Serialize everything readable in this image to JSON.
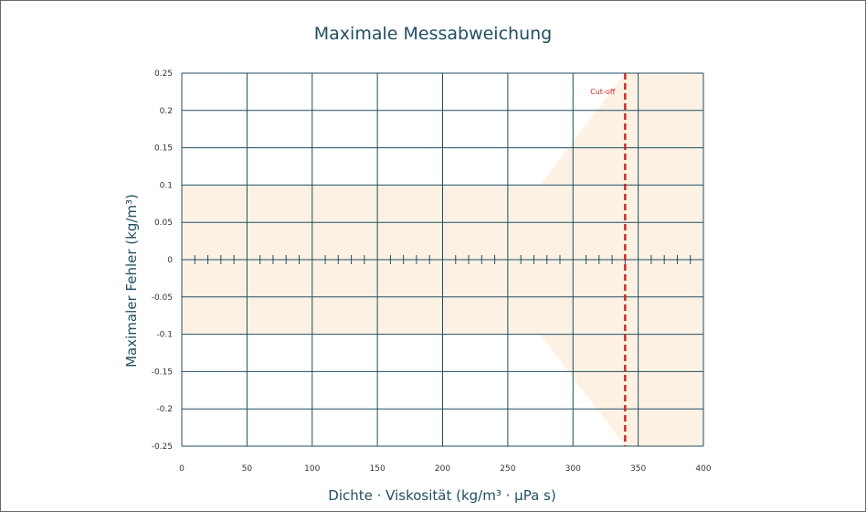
{
  "chart_data": {
    "type": "line",
    "title": "Maximale Messabweichung",
    "xlabel": "Dichte · Viskosität (kg/m³ · µPa s)",
    "ylabel": "Maximaler Fehler (kg/m³)",
    "xlim": [
      0,
      400
    ],
    "ylim": [
      -0.25,
      0.25
    ],
    "x_ticks": [
      0,
      50,
      100,
      150,
      200,
      250,
      300,
      350,
      400
    ],
    "x_tick_labels": [
      "0",
      "50",
      "100",
      "150",
      "200",
      "250",
      "300",
      "350",
      "400"
    ],
    "y_ticks": [
      0.25,
      0.2,
      0.15,
      0.1,
      0.05,
      0,
      -0.05,
      -0.1,
      -0.15,
      -0.2,
      -0.25
    ],
    "y_tick_labels": [
      "0.25",
      "0.2",
      "0.15",
      "0.1",
      "0.05",
      "0",
      "-0.05",
      "-0.1",
      "-0.15",
      "-0.2",
      "-0.25"
    ],
    "grid": true,
    "error_band": {
      "x": [
        0,
        275,
        340,
        400
      ],
      "upper": [
        0.1,
        0.1,
        0.25,
        0.25
      ],
      "lower": [
        -0.1,
        -0.1,
        -0.25,
        -0.25
      ]
    },
    "cutoff": {
      "x": 340,
      "label": "Cut-off"
    },
    "minor_tick_spacing": 10,
    "colors": {
      "band": "#fdf1e3",
      "grid": "#1f4f63",
      "cutoff": "#d42020",
      "text": "#1f4f63"
    }
  }
}
